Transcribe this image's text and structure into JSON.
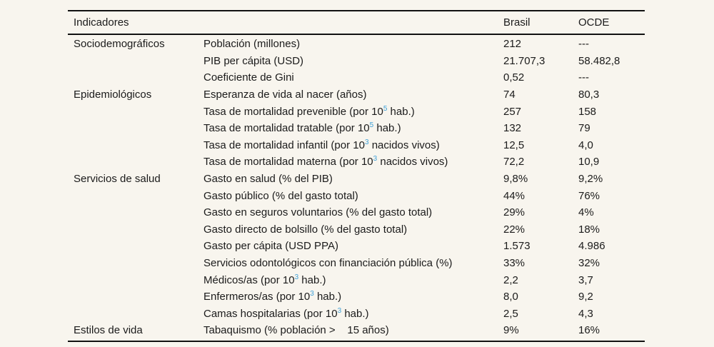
{
  "colors": {
    "background": "#f8f5ee",
    "text": "#1b1b1b",
    "rule": "#111111",
    "superscript_accent": "#3fa1d8"
  },
  "table": {
    "headers": {
      "indicator": "Indicadores",
      "brasil": "Brasil",
      "ocde": "OCDE"
    },
    "rows": [
      {
        "category": "Sociodemográficos",
        "label_pre": "Población (millones)",
        "sup": "",
        "label_post": "",
        "brasil": "212",
        "ocde": "---"
      },
      {
        "category": "",
        "label_pre": "PIB per cápita (USD)",
        "sup": "",
        "label_post": "",
        "brasil": "21.707,3",
        "ocde": "58.482,8"
      },
      {
        "category": "",
        "label_pre": "Coeficiente de Gini",
        "sup": "",
        "label_post": "",
        "brasil": "0,52",
        "ocde": "---"
      },
      {
        "category": "Epidemiológicos",
        "label_pre": "Esperanza de vida al nacer (años)",
        "sup": "",
        "label_post": "",
        "brasil": "74",
        "ocde": "80,3"
      },
      {
        "category": "",
        "label_pre": "Tasa de mortalidad prevenible (por 10",
        "sup": "5",
        "label_post": " hab.)",
        "brasil": "257",
        "ocde": "158"
      },
      {
        "category": "",
        "label_pre": "Tasa de mortalidad tratable (por 10",
        "sup": "5",
        "label_post": " hab.)",
        "brasil": "132",
        "ocde": "79"
      },
      {
        "category": "",
        "label_pre": "Tasa de mortalidad infantil (por 10",
        "sup": "3",
        "label_post": " nacidos vivos)",
        "brasil": "12,5",
        "ocde": "4,0"
      },
      {
        "category": "",
        "label_pre": "Tasa de mortalidad materna (por 10",
        "sup": "3",
        "label_post": " nacidos vivos)",
        "brasil": "72,2",
        "ocde": "10,9"
      },
      {
        "category": "Servicios de salud",
        "label_pre": "Gasto en salud (% del PIB)",
        "sup": "",
        "label_post": "",
        "brasil": "9,8%",
        "ocde": "9,2%"
      },
      {
        "category": "",
        "label_pre": "Gasto público (% del gasto total)",
        "sup": "",
        "label_post": "",
        "brasil": "44%",
        "ocde": "76%"
      },
      {
        "category": "",
        "label_pre": "Gasto en seguros voluntarios (% del gasto total)",
        "sup": "",
        "label_post": "",
        "brasil": "29%",
        "ocde": "4%"
      },
      {
        "category": "",
        "label_pre": "Gasto directo de bolsillo (% del gasto total)",
        "sup": "",
        "label_post": "",
        "brasil": "22%",
        "ocde": "18%"
      },
      {
        "category": "",
        "label_pre": "Gasto per cápita (USD PPA)",
        "sup": "",
        "label_post": "",
        "brasil": "1.573",
        "ocde": "4.986"
      },
      {
        "category": "",
        "label_pre": "Servicios odontológicos con financiación pública (%)",
        "sup": "",
        "label_post": "",
        "brasil": "33%",
        "ocde": "32%"
      },
      {
        "category": "",
        "label_pre": "Médicos/as (por 10",
        "sup": "3",
        "label_post": " hab.)",
        "brasil": "2,2",
        "ocde": "3,7"
      },
      {
        "category": "",
        "label_pre": "Enfermeros/as (por 10",
        "sup": "3",
        "label_post": " hab.)",
        "brasil": "8,0",
        "ocde": "9,2"
      },
      {
        "category": "",
        "label_pre": "Camas hospitalarias (por 10",
        "sup": "3",
        "label_post": " hab.)",
        "brasil": "2,5",
        "ocde": "4,3"
      },
      {
        "category": "Estilos de vida",
        "label_pre": "Tabaquismo (% población >    15 años)",
        "sup": "",
        "label_post": "",
        "brasil": "9%",
        "ocde": "16%"
      }
    ]
  }
}
